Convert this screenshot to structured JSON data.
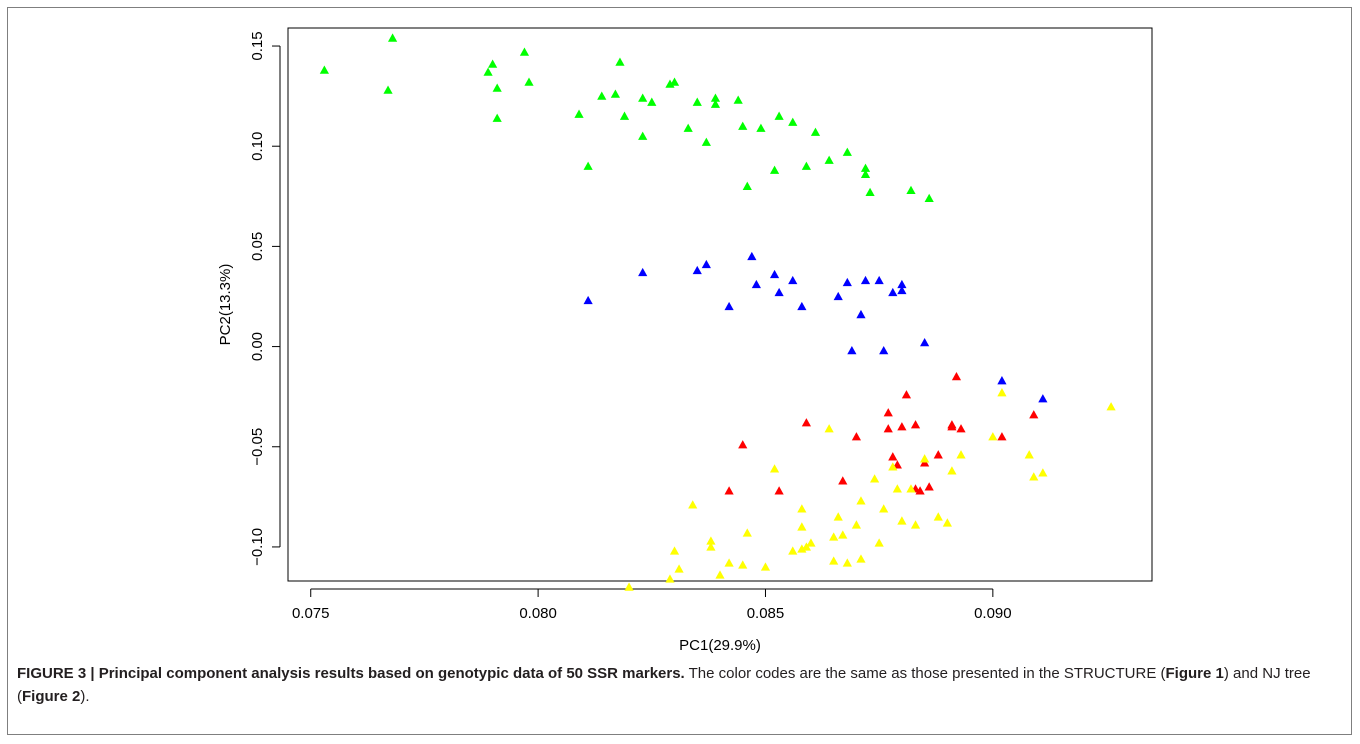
{
  "chart_data": {
    "type": "scatter",
    "xlabel": "PC1(29.9%)",
    "ylabel": "PC2(13.3%)",
    "xlim": [
      0.0745,
      0.0935
    ],
    "ylim": [
      -0.117,
      0.159
    ],
    "x_ticks": [
      {
        "value": 0.075,
        "label": "0.075"
      },
      {
        "value": 0.08,
        "label": "0.080"
      },
      {
        "value": 0.085,
        "label": "0.085"
      },
      {
        "value": 0.09,
        "label": "0.090"
      }
    ],
    "y_ticks": [
      {
        "value": -0.1,
        "label": "−0.10"
      },
      {
        "value": -0.05,
        "label": "−0.05"
      },
      {
        "value": 0.0,
        "label": "0.00"
      },
      {
        "value": 0.05,
        "label": "0.05"
      },
      {
        "value": 0.1,
        "label": "0.10"
      },
      {
        "value": 0.15,
        "label": "0.15"
      }
    ],
    "grid": false,
    "marker": "triangle",
    "series": [
      {
        "color": "#00ff00",
        "points": [
          [
            0.0753,
            0.138
          ],
          [
            0.0767,
            0.128
          ],
          [
            0.0768,
            0.154
          ],
          [
            0.0789,
            0.137
          ],
          [
            0.079,
            0.141
          ],
          [
            0.0791,
            0.114
          ],
          [
            0.0791,
            0.129
          ],
          [
            0.0797,
            0.147
          ],
          [
            0.0798,
            0.132
          ],
          [
            0.0809,
            0.116
          ],
          [
            0.0811,
            0.09
          ],
          [
            0.0814,
            0.125
          ],
          [
            0.0817,
            0.126
          ],
          [
            0.0818,
            0.142
          ],
          [
            0.0819,
            0.115
          ],
          [
            0.0823,
            0.124
          ],
          [
            0.0823,
            0.105
          ],
          [
            0.0825,
            0.122
          ],
          [
            0.0829,
            0.131
          ],
          [
            0.083,
            0.132
          ],
          [
            0.0833,
            0.109
          ],
          [
            0.0835,
            0.122
          ],
          [
            0.0837,
            0.102
          ],
          [
            0.0839,
            0.124
          ],
          [
            0.0839,
            0.121
          ],
          [
            0.0844,
            0.123
          ],
          [
            0.0845,
            0.11
          ],
          [
            0.0846,
            0.08
          ],
          [
            0.0849,
            0.109
          ],
          [
            0.0852,
            0.088
          ],
          [
            0.0853,
            0.115
          ],
          [
            0.0856,
            0.112
          ],
          [
            0.0859,
            0.09
          ],
          [
            0.0861,
            0.107
          ],
          [
            0.0864,
            0.093
          ],
          [
            0.0868,
            0.097
          ],
          [
            0.0872,
            0.089
          ],
          [
            0.0872,
            0.086
          ],
          [
            0.0873,
            0.077
          ],
          [
            0.0882,
            0.078
          ],
          [
            0.0886,
            0.074
          ]
        ]
      },
      {
        "color": "#0000ff",
        "points": [
          [
            0.0811,
            0.023
          ],
          [
            0.0823,
            0.037
          ],
          [
            0.0835,
            0.038
          ],
          [
            0.0837,
            0.041
          ],
          [
            0.0842,
            0.02
          ],
          [
            0.0847,
            0.045
          ],
          [
            0.0848,
            0.031
          ],
          [
            0.0852,
            0.036
          ],
          [
            0.0853,
            0.027
          ],
          [
            0.0856,
            0.033
          ],
          [
            0.0858,
            0.02
          ],
          [
            0.0866,
            0.025
          ],
          [
            0.0868,
            0.032
          ],
          [
            0.0869,
            -0.002
          ],
          [
            0.0871,
            0.016
          ],
          [
            0.0872,
            0.033
          ],
          [
            0.0875,
            0.033
          ],
          [
            0.0876,
            -0.002
          ],
          [
            0.0878,
            0.027
          ],
          [
            0.088,
            0.031
          ],
          [
            0.088,
            0.028
          ],
          [
            0.0885,
            0.002
          ],
          [
            0.0902,
            -0.017
          ],
          [
            0.0911,
            -0.026
          ]
        ]
      },
      {
        "color": "#ff0000",
        "points": [
          [
            0.0842,
            -0.072
          ],
          [
            0.0845,
            -0.049
          ],
          [
            0.0853,
            -0.072
          ],
          [
            0.0859,
            -0.038
          ],
          [
            0.0867,
            -0.067
          ],
          [
            0.087,
            -0.045
          ],
          [
            0.0877,
            -0.041
          ],
          [
            0.0877,
            -0.033
          ],
          [
            0.0878,
            -0.055
          ],
          [
            0.0879,
            -0.059
          ],
          [
            0.088,
            -0.04
          ],
          [
            0.0881,
            -0.024
          ],
          [
            0.0883,
            -0.071
          ],
          [
            0.0883,
            -0.039
          ],
          [
            0.0884,
            -0.072
          ],
          [
            0.0885,
            -0.058
          ],
          [
            0.0886,
            -0.07
          ],
          [
            0.0888,
            -0.054
          ],
          [
            0.0891,
            -0.04
          ],
          [
            0.0892,
            -0.015
          ],
          [
            0.0893,
            -0.041
          ],
          [
            0.0902,
            -0.045
          ],
          [
            0.0909,
            -0.034
          ],
          [
            0.0891,
            -0.039
          ]
        ]
      },
      {
        "color": "#ffff00",
        "points": [
          [
            0.082,
            -0.12
          ],
          [
            0.0829,
            -0.116
          ],
          [
            0.083,
            -0.102
          ],
          [
            0.0831,
            -0.111
          ],
          [
            0.0834,
            -0.079
          ],
          [
            0.0838,
            -0.097
          ],
          [
            0.0838,
            -0.1
          ],
          [
            0.084,
            -0.114
          ],
          [
            0.0842,
            -0.108
          ],
          [
            0.0845,
            -0.109
          ],
          [
            0.0846,
            -0.093
          ],
          [
            0.085,
            -0.11
          ],
          [
            0.0852,
            -0.061
          ],
          [
            0.0856,
            -0.102
          ],
          [
            0.0858,
            -0.081
          ],
          [
            0.0858,
            -0.09
          ],
          [
            0.0858,
            -0.101
          ],
          [
            0.0859,
            -0.1
          ],
          [
            0.086,
            -0.098
          ],
          [
            0.0864,
            -0.041
          ],
          [
            0.0865,
            -0.107
          ],
          [
            0.0865,
            -0.095
          ],
          [
            0.0866,
            -0.085
          ],
          [
            0.0867,
            -0.094
          ],
          [
            0.0868,
            -0.108
          ],
          [
            0.087,
            -0.089
          ],
          [
            0.0871,
            -0.106
          ],
          [
            0.0871,
            -0.077
          ],
          [
            0.0874,
            -0.066
          ],
          [
            0.0875,
            -0.098
          ],
          [
            0.0876,
            -0.081
          ],
          [
            0.0878,
            -0.06
          ],
          [
            0.0879,
            -0.071
          ],
          [
            0.088,
            -0.087
          ],
          [
            0.0882,
            -0.071
          ],
          [
            0.0883,
            -0.089
          ],
          [
            0.0885,
            -0.056
          ],
          [
            0.0888,
            -0.085
          ],
          [
            0.089,
            -0.088
          ],
          [
            0.0891,
            -0.062
          ],
          [
            0.0893,
            -0.054
          ],
          [
            0.09,
            -0.045
          ],
          [
            0.0902,
            -0.023
          ],
          [
            0.0908,
            -0.054
          ],
          [
            0.0909,
            -0.065
          ],
          [
            0.0911,
            -0.063
          ],
          [
            0.0926,
            -0.03
          ]
        ]
      }
    ]
  },
  "caption": {
    "label": "FIGURE 3 | Principal component analysis results based on genotypic data of 50 SSR markers.",
    "text_1": " The color codes are the same as those presented in the STRUCTURE (",
    "fig1": "Figure 1",
    "text_2": ") and NJ tree (",
    "fig2": "Figure 2",
    "text_3": ")."
  }
}
